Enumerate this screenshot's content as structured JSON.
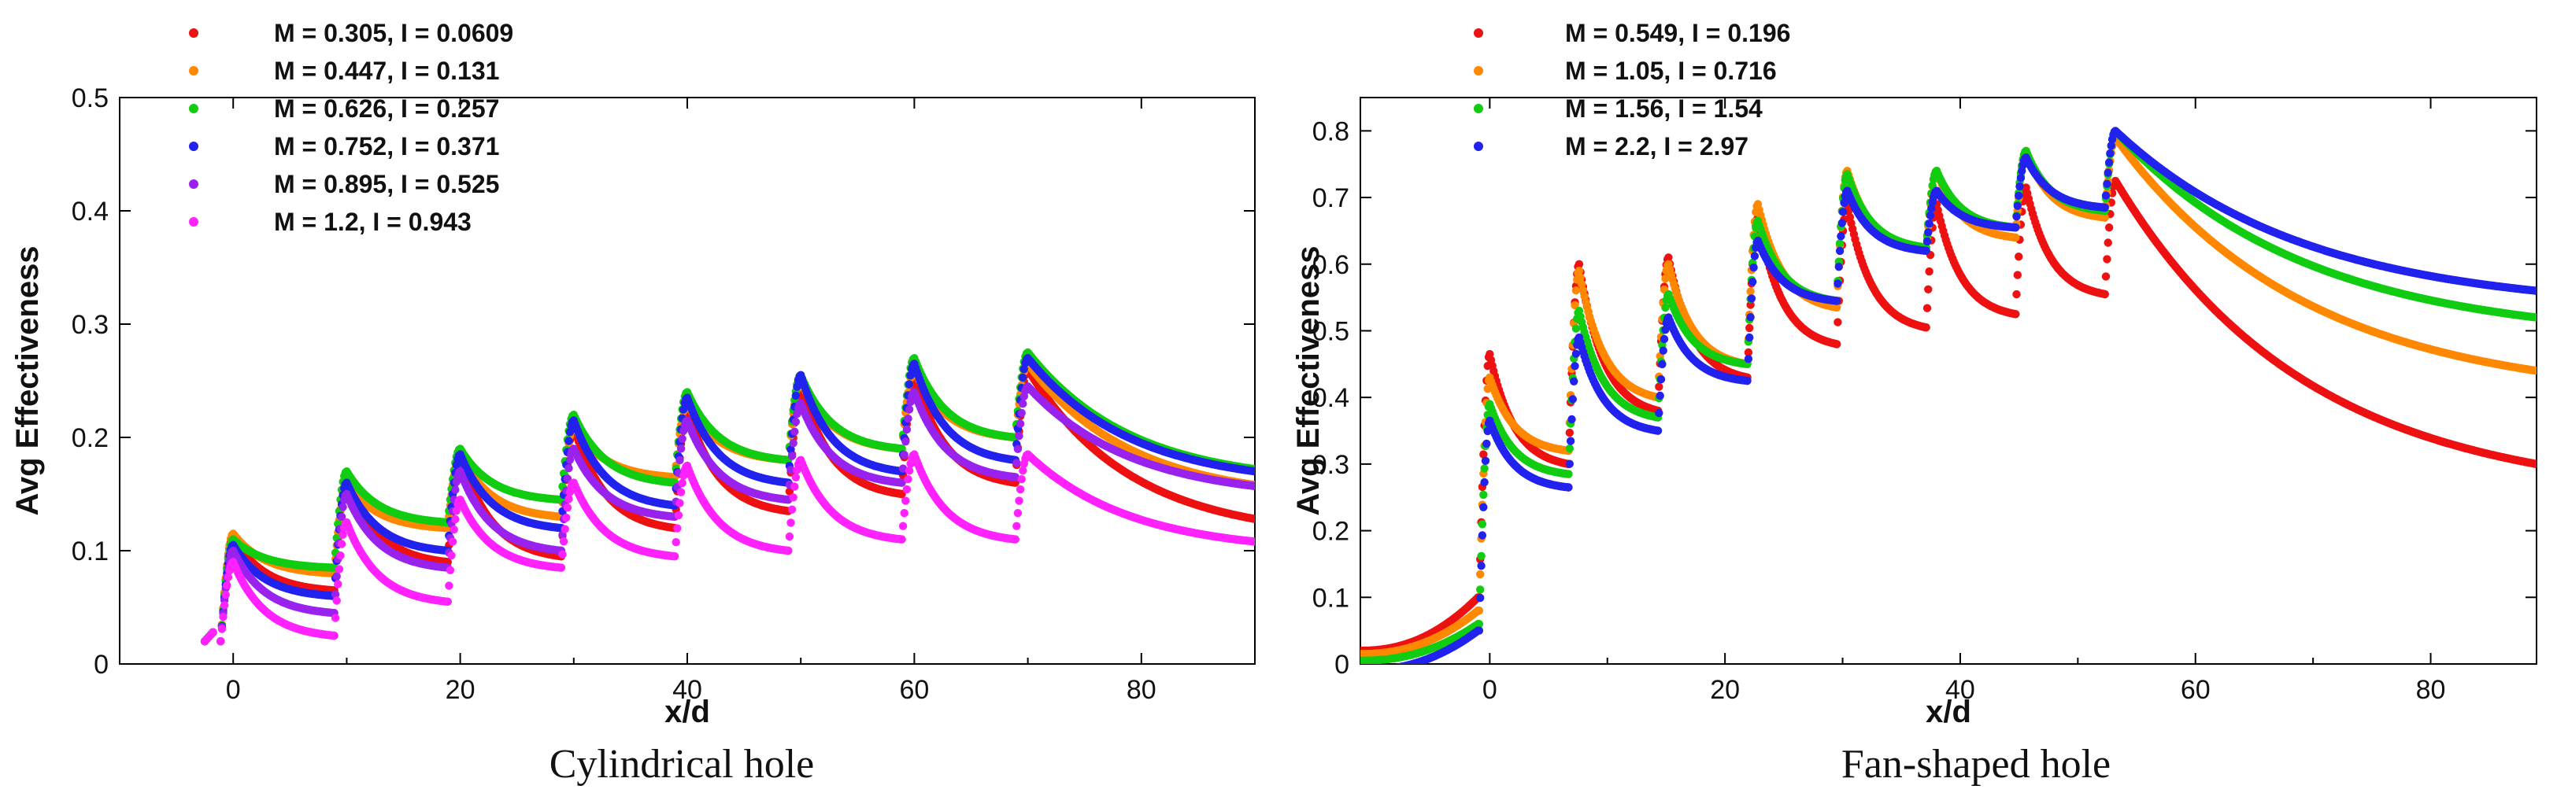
{
  "chart_data": [
    {
      "type": "scatter",
      "caption": "Cylindrical hole",
      "xlabel": "x/d",
      "ylabel": "Avg Effectiveness",
      "xlim": [
        -10,
        90
      ],
      "ylim": [
        0,
        0.5
      ],
      "xticks": [
        0,
        20,
        40,
        60,
        80
      ],
      "xtick_labels": [
        "0",
        "20",
        "40",
        "60",
        "80"
      ],
      "yticks": [
        0,
        0.1,
        0.2,
        0.3,
        0.4,
        0.5
      ],
      "ytick_labels": [
        "0",
        "0.1",
        "0.2",
        "0.3",
        "0.4",
        "0.5"
      ],
      "hole_locations": [
        0,
        10,
        20,
        30,
        40,
        50,
        60,
        70
      ],
      "start_x": -2.5,
      "start_y": 0.02,
      "series": [
        {
          "name": "M = 0.305, I = 0.0609",
          "color": "#ee1111",
          "peaks": [
            0.112,
            0.165,
            0.185,
            0.21,
            0.225,
            0.245,
            0.255,
            0.26
          ],
          "valleys": [
            0.065,
            0.09,
            0.095,
            0.12,
            0.135,
            0.15,
            0.16
          ],
          "end_value": 0.128
        },
        {
          "name": "M = 0.447, I = 0.131",
          "color": "#ff8800",
          "peaks": [
            0.115,
            0.16,
            0.185,
            0.21,
            0.23,
            0.25,
            0.26,
            0.265
          ],
          "valleys": [
            0.08,
            0.12,
            0.13,
            0.165,
            0.18,
            0.19,
            0.2
          ],
          "end_value": 0.158
        },
        {
          "name": "M = 0.626, I = 0.257",
          "color": "#11cc11",
          "peaks": [
            0.11,
            0.17,
            0.19,
            0.22,
            0.24,
            0.255,
            0.27,
            0.275
          ],
          "valleys": [
            0.085,
            0.125,
            0.145,
            0.16,
            0.18,
            0.19,
            0.2
          ],
          "end_value": 0.172
        },
        {
          "name": "M = 0.752, I = 0.371",
          "color": "#2222ee",
          "peaks": [
            0.105,
            0.16,
            0.185,
            0.215,
            0.235,
            0.255,
            0.265,
            0.27
          ],
          "valleys": [
            0.06,
            0.1,
            0.12,
            0.14,
            0.16,
            0.17,
            0.18
          ],
          "end_value": 0.17
        },
        {
          "name": "M = 0.895, I = 0.525",
          "color": "#9922ee",
          "peaks": [
            0.1,
            0.15,
            0.17,
            0.19,
            0.215,
            0.23,
            0.24,
            0.245
          ],
          "valleys": [
            0.045,
            0.085,
            0.1,
            0.13,
            0.145,
            0.16,
            0.165
          ],
          "end_value": 0.157
        },
        {
          "name": "M = 1.2, I = 0.943",
          "color": "#ff22ff",
          "peaks": [
            0.09,
            0.125,
            0.145,
            0.16,
            0.175,
            0.18,
            0.185,
            0.185
          ],
          "valleys": [
            0.025,
            0.055,
            0.085,
            0.095,
            0.1,
            0.11,
            0.11
          ],
          "end_value": 0.108
        }
      ]
    },
    {
      "type": "scatter",
      "caption": "Fan-shaped hole",
      "xlabel": "x/d",
      "ylabel": "Avg Effectiveness",
      "xlim": [
        -11,
        89
      ],
      "ylim": [
        0,
        0.85
      ],
      "xticks": [
        0,
        20,
        40,
        60,
        80
      ],
      "xtick_labels": [
        "0",
        "20",
        "40",
        "60",
        "80"
      ],
      "yticks": [
        0,
        0.1,
        0.2,
        0.3,
        0.4,
        0.5,
        0.6,
        0.7,
        0.8
      ],
      "ytick_labels": [
        "0",
        "0.1",
        "0.2",
        "0.3",
        "0.4",
        "0.5",
        "0.6",
        "0.7",
        "0.8"
      ],
      "hole_locations": [
        0,
        7.6,
        15.2,
        22.8,
        30.4,
        38,
        45.6,
        53.2
      ],
      "start_x": -11,
      "series": [
        {
          "name": "M = 0.549, I = 0.196",
          "color": "#ee1111",
          "start_value": 0.02,
          "pre_hole": 0.1,
          "peaks": [
            0.465,
            0.6,
            0.61,
            0.67,
            0.69,
            0.69,
            0.715,
            0.725
          ],
          "valleys": [
            0.3,
            0.38,
            0.43,
            0.48,
            0.505,
            0.525,
            0.555
          ],
          "end_value": 0.3
        },
        {
          "name": "M = 1.05, I = 0.716",
          "color": "#ff8800",
          "start_value": 0.015,
          "pre_hole": 0.08,
          "peaks": [
            0.43,
            0.59,
            0.6,
            0.69,
            0.74,
            0.74,
            0.77,
            0.79
          ],
          "valleys": [
            0.32,
            0.4,
            0.45,
            0.535,
            0.62,
            0.64,
            0.67
          ],
          "end_value": 0.44
        },
        {
          "name": "M = 1.56, I = 1.54",
          "color": "#11cc11",
          "start_value": 0.005,
          "pre_hole": 0.06,
          "peaks": [
            0.39,
            0.53,
            0.555,
            0.665,
            0.735,
            0.74,
            0.77,
            0.8
          ],
          "valleys": [
            0.285,
            0.37,
            0.45,
            0.545,
            0.625,
            0.655,
            0.68
          ],
          "end_value": 0.52
        },
        {
          "name": "M = 2.2, I = 2.97",
          "color": "#2222ee",
          "start_value": -0.01,
          "pre_hole": 0.05,
          "peaks": [
            0.365,
            0.49,
            0.52,
            0.635,
            0.71,
            0.71,
            0.76,
            0.8
          ],
          "valleys": [
            0.265,
            0.35,
            0.425,
            0.545,
            0.62,
            0.655,
            0.685
          ],
          "end_value": 0.56
        }
      ]
    }
  ]
}
